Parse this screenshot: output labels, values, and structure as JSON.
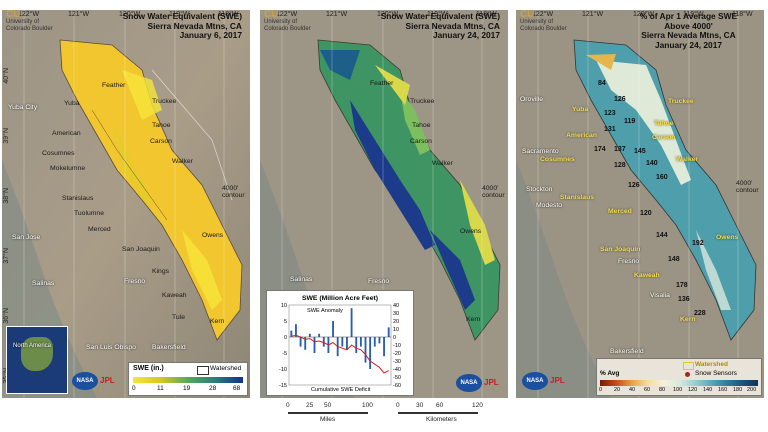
{
  "axes": {
    "lon_labels": [
      "122°W",
      "121°W",
      "120°W",
      "119°W",
      "118°W"
    ],
    "lat_labels": [
      "40°N",
      "39°N",
      "38°N",
      "37°N",
      "36°N",
      "35°N"
    ]
  },
  "branding": {
    "university": "University of Colorado Boulder",
    "university_short": "CU",
    "agency": "NASA",
    "lab": "JPL"
  },
  "panels": [
    {
      "title_lines": [
        "Snow Water Equivalent (SWE)",
        "Sierra Nevada Mtns, CA",
        "January 6, 2017"
      ],
      "legend": {
        "title": "SWE (in.)",
        "ticks": [
          "0",
          "11",
          "19",
          "28",
          "68"
        ],
        "colors": [
          "#f6e63a",
          "#d9c628",
          "#56a95a",
          "#2a7d7a",
          "#13318a"
        ],
        "watershed_label": "Watershed",
        "inset_label": "North America"
      }
    },
    {
      "title_lines": [
        "Snow Water Equivalent (SWE)",
        "Sierra Nevada Mtns, CA",
        "January 24, 2017"
      ]
    },
    {
      "title_lines": [
        "% of Apr 1 Average SWE",
        "Above 4000'",
        "Sierra Nevada Mtns, CA",
        "January 24, 2017"
      ],
      "legend": {
        "title": "% Avg",
        "ticks": [
          "0",
          "20",
          "40",
          "60",
          "80",
          "100",
          "120",
          "140",
          "160",
          "180",
          "200"
        ],
        "watershed_label": "Watershed",
        "sensor_label": "Snow Sensors"
      }
    }
  ],
  "places": {
    "cities": [
      "Yuba City",
      "Sacramento",
      "San Jose",
      "Salinas",
      "Fresno",
      "San Luis Obispo",
      "Bakersfield",
      "Stockton",
      "Modesto",
      "Merced",
      "Visalia",
      "Oroville"
    ],
    "watersheds": [
      "Feather",
      "Yuba",
      "American",
      "Cosumnes",
      "Mokelumne",
      "Stanislaus",
      "Tuolumne",
      "Merced",
      "San Joaquin",
      "Kings",
      "Kaweah",
      "Tule",
      "Kern",
      "Truckee",
      "Tahoe",
      "Carson",
      "Walker",
      "Owens"
    ],
    "contour_label": "4000' contour"
  },
  "percent_values": [
    "84",
    "126",
    "123",
    "119",
    "131",
    "174",
    "137",
    "128",
    "145",
    "140",
    "160",
    "126",
    "120",
    "144",
    "192",
    "148",
    "178",
    "136",
    "228"
  ],
  "chart_data": {
    "type": "bar",
    "title": "SWE (Million Acre Feet)",
    "series_labels": [
      "SWE Anomaly",
      "Cumulative SWE Deficit"
    ],
    "left_axis_ticks": [
      "10",
      "5",
      "0",
      "-5",
      "-10",
      "-15"
    ],
    "right_axis_ticks": [
      "40",
      "30",
      "20",
      "10",
      "0",
      "-10",
      "-20",
      "-30",
      "-40",
      "-50",
      "-60"
    ],
    "ylim_left": [
      -15,
      10
    ],
    "ylim_right": [
      -60,
      40
    ],
    "anomaly": [
      2,
      4,
      -3,
      -4,
      1,
      -5,
      1,
      -3,
      -5,
      5,
      -6,
      -3,
      -4,
      9,
      -5,
      -3,
      -8,
      -10,
      -3,
      -2,
      -6,
      3
    ],
    "deficit": [
      1,
      2,
      0,
      -3,
      -2,
      -6,
      -5,
      -7,
      -10,
      -7,
      -12,
      -14,
      -16,
      -10,
      -14,
      -16,
      -22,
      -30,
      -34,
      -38,
      -45,
      -42
    ]
  },
  "scale_bar": {
    "miles_label": "Miles",
    "km_label": "Kilometers",
    "miles_ticks": [
      "0",
      "25",
      "50",
      "100"
    ],
    "km_ticks": [
      "0",
      "30",
      "60",
      "120"
    ]
  }
}
